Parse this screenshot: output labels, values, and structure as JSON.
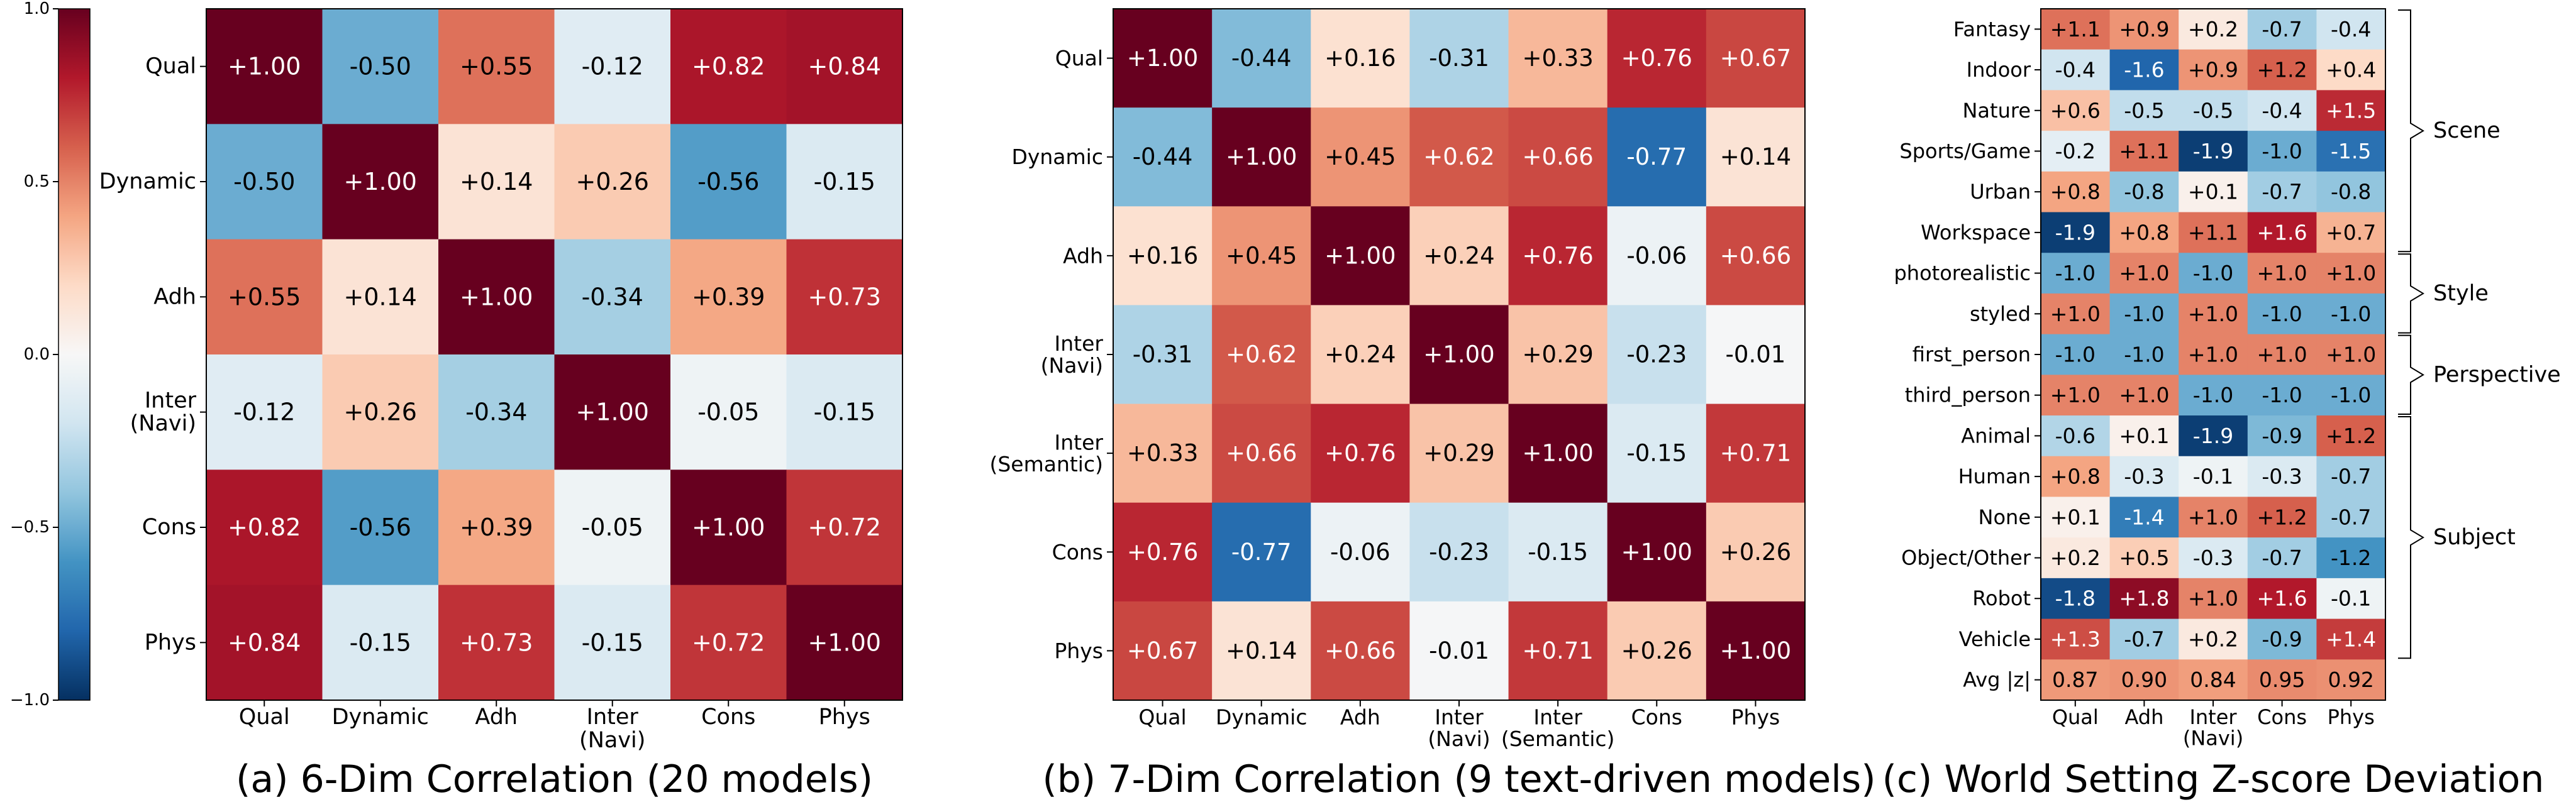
{
  "colormap": {
    "stops": [
      "#053061",
      "#2166ac",
      "#4393c3",
      "#92c5de",
      "#d1e5f0",
      "#f7f7f7",
      "#fddbc7",
      "#f4a582",
      "#d6604d",
      "#b2182b",
      "#67001f"
    ]
  },
  "colorbar": {
    "vmin": -1.0,
    "vmax": 1.0,
    "ticks": [
      "1.0",
      "0.5",
      "0.0",
      "−0.5",
      "−1.0"
    ],
    "tick_values": [
      1.0,
      0.5,
      0.0,
      -0.5,
      -1.0
    ]
  },
  "chart_data": [
    {
      "type": "heatmap",
      "title": "(a) 6-Dim Correlation (20 models)",
      "rows": [
        [
          "Qual"
        ],
        [
          "Dynamic"
        ],
        [
          "Adh"
        ],
        [
          "Inter",
          "(Navi)"
        ],
        [
          "Cons"
        ],
        [
          "Phys"
        ]
      ],
      "columns": [
        [
          "Qual"
        ],
        [
          "Dynamic"
        ],
        [
          "Adh"
        ],
        [
          "Inter",
          "(Navi)"
        ],
        [
          "Cons"
        ],
        [
          "Phys"
        ]
      ],
      "values": [
        [
          1.0,
          -0.5,
          0.55,
          -0.12,
          0.82,
          0.84
        ],
        [
          -0.5,
          1.0,
          0.14,
          0.26,
          -0.56,
          -0.15
        ],
        [
          0.55,
          0.14,
          1.0,
          -0.34,
          0.39,
          0.73
        ],
        [
          -0.12,
          0.26,
          -0.34,
          1.0,
          -0.05,
          -0.15
        ],
        [
          0.82,
          -0.56,
          0.39,
          -0.05,
          1.0,
          0.72
        ],
        [
          0.84,
          -0.15,
          0.73,
          -0.15,
          0.72,
          1.0
        ]
      ],
      "labels": [
        [
          "+1.00",
          "-0.50",
          "+0.55",
          "-0.12",
          "+0.82",
          "+0.84"
        ],
        [
          "-0.50",
          "+1.00",
          "+0.14",
          "+0.26",
          "-0.56",
          "-0.15"
        ],
        [
          "+0.55",
          "+0.14",
          "+1.00",
          "-0.34",
          "+0.39",
          "+0.73"
        ],
        [
          "-0.12",
          "+0.26",
          "-0.34",
          "+1.00",
          "-0.05",
          "-0.15"
        ],
        [
          "+0.82",
          "-0.56",
          "+0.39",
          "-0.05",
          "+1.00",
          "+0.72"
        ],
        [
          "+0.84",
          "-0.15",
          "+0.73",
          "-0.15",
          "+0.72",
          "+1.00"
        ]
      ]
    },
    {
      "type": "heatmap",
      "title": "(b) 7-Dim Correlation (9 text-driven models)",
      "rows": [
        [
          "Qual"
        ],
        [
          "Dynamic"
        ],
        [
          "Adh"
        ],
        [
          "Inter",
          "(Navi)"
        ],
        [
          "Inter",
          "(Semantic)"
        ],
        [
          "Cons"
        ],
        [
          "Phys"
        ]
      ],
      "columns": [
        [
          "Qual"
        ],
        [
          "Dynamic"
        ],
        [
          "Adh"
        ],
        [
          "Inter",
          "(Navi)"
        ],
        [
          "Inter",
          "(Semantic)"
        ],
        [
          "Cons"
        ],
        [
          "Phys"
        ]
      ],
      "values": [
        [
          1.0,
          -0.44,
          0.16,
          -0.31,
          0.33,
          0.76,
          0.67
        ],
        [
          -0.44,
          1.0,
          0.45,
          0.62,
          0.66,
          -0.77,
          0.14
        ],
        [
          0.16,
          0.45,
          1.0,
          0.24,
          0.76,
          -0.06,
          0.66
        ],
        [
          -0.31,
          0.62,
          0.24,
          1.0,
          0.29,
          -0.23,
          -0.01
        ],
        [
          0.33,
          0.66,
          0.76,
          0.29,
          1.0,
          -0.15,
          0.71
        ],
        [
          0.76,
          -0.77,
          -0.06,
          -0.23,
          -0.15,
          1.0,
          0.26
        ],
        [
          0.67,
          0.14,
          0.66,
          -0.01,
          0.71,
          0.26,
          1.0
        ]
      ],
      "labels": [
        [
          "+1.00",
          "-0.44",
          "+0.16",
          "-0.31",
          "+0.33",
          "+0.76",
          "+0.67"
        ],
        [
          "-0.44",
          "+1.00",
          "+0.45",
          "+0.62",
          "+0.66",
          "-0.77",
          "+0.14"
        ],
        [
          "+0.16",
          "+0.45",
          "+1.00",
          "+0.24",
          "+0.76",
          "-0.06",
          "+0.66"
        ],
        [
          "-0.31",
          "+0.62",
          "+0.24",
          "+1.00",
          "+0.29",
          "-0.23",
          "-0.01"
        ],
        [
          "+0.33",
          "+0.66",
          "+0.76",
          "+0.29",
          "+1.00",
          "-0.15",
          "+0.71"
        ],
        [
          "+0.76",
          "-0.77",
          "-0.06",
          "-0.23",
          "-0.15",
          "+1.00",
          "+0.26"
        ],
        [
          "+0.67",
          "+0.14",
          "+0.66",
          "-0.01",
          "+0.71",
          "+0.26",
          "+1.00"
        ]
      ]
    },
    {
      "type": "heatmap",
      "title": "(c) World Setting Z-score Deviation",
      "rows": [
        [
          "Fantasy"
        ],
        [
          "Indoor"
        ],
        [
          "Nature"
        ],
        [
          "Sports/Game"
        ],
        [
          "Urban"
        ],
        [
          "Workspace"
        ],
        [
          "photorealistic"
        ],
        [
          "styled"
        ],
        [
          "first_person"
        ],
        [
          "third_person"
        ],
        [
          "Animal"
        ],
        [
          "Human"
        ],
        [
          "None"
        ],
        [
          "Object/Other"
        ],
        [
          "Robot"
        ],
        [
          "Vehicle"
        ],
        [
          "Avg |z|"
        ]
      ],
      "columns": [
        [
          "Qual"
        ],
        [
          "Adh"
        ],
        [
          "Inter",
          "(Navi)"
        ],
        [
          "Cons"
        ],
        [
          "Phys"
        ]
      ],
      "values": [
        [
          1.1,
          0.9,
          0.2,
          -0.7,
          -0.4
        ],
        [
          -0.4,
          -1.6,
          0.9,
          1.2,
          0.4
        ],
        [
          0.6,
          -0.5,
          -0.5,
          -0.4,
          1.5
        ],
        [
          -0.2,
          1.1,
          -1.9,
          -1.0,
          -1.5
        ],
        [
          0.8,
          -0.8,
          0.1,
          -0.7,
          -0.8
        ],
        [
          -1.9,
          0.8,
          1.1,
          1.6,
          0.7
        ],
        [
          -1.0,
          1.0,
          -1.0,
          1.0,
          1.0
        ],
        [
          1.0,
          -1.0,
          1.0,
          -1.0,
          -1.0
        ],
        [
          -1.0,
          -1.0,
          1.0,
          1.0,
          1.0
        ],
        [
          1.0,
          1.0,
          -1.0,
          -1.0,
          -1.0
        ],
        [
          -0.6,
          0.1,
          -1.9,
          -0.9,
          1.2
        ],
        [
          0.8,
          -0.3,
          -0.1,
          -0.3,
          -0.7
        ],
        [
          0.1,
          -1.4,
          1.0,
          1.2,
          -0.7
        ],
        [
          0.2,
          0.5,
          -0.3,
          -0.7,
          -1.2
        ],
        [
          -1.8,
          1.8,
          1.0,
          1.6,
          -0.1
        ],
        [
          1.3,
          -0.7,
          0.2,
          -0.9,
          1.4
        ],
        [
          0.87,
          0.9,
          0.84,
          0.95,
          0.92
        ]
      ],
      "labels": [
        [
          "+1.1",
          "+0.9",
          "+0.2",
          "-0.7",
          "-0.4"
        ],
        [
          "-0.4",
          "-1.6",
          "+0.9",
          "+1.2",
          "+0.4"
        ],
        [
          "+0.6",
          "-0.5",
          "-0.5",
          "-0.4",
          "+1.5"
        ],
        [
          "-0.2",
          "+1.1",
          "-1.9",
          "-1.0",
          "-1.5"
        ],
        [
          "+0.8",
          "-0.8",
          "+0.1",
          "-0.7",
          "-0.8"
        ],
        [
          "-1.9",
          "+0.8",
          "+1.1",
          "+1.6",
          "+0.7"
        ],
        [
          "-1.0",
          "+1.0",
          "-1.0",
          "+1.0",
          "+1.0"
        ],
        [
          "+1.0",
          "-1.0",
          "+1.0",
          "-1.0",
          "-1.0"
        ],
        [
          "-1.0",
          "-1.0",
          "+1.0",
          "+1.0",
          "+1.0"
        ],
        [
          "+1.0",
          "+1.0",
          "-1.0",
          "-1.0",
          "-1.0"
        ],
        [
          "-0.6",
          "+0.1",
          "-1.9",
          "-0.9",
          "+1.2"
        ],
        [
          "+0.8",
          "-0.3",
          "-0.1",
          "-0.3",
          "-0.7"
        ],
        [
          "+0.1",
          "-1.4",
          "+1.0",
          "+1.2",
          "-0.7"
        ],
        [
          "+0.2",
          "+0.5",
          "-0.3",
          "-0.7",
          "-1.2"
        ],
        [
          "-1.8",
          "+1.8",
          "+1.0",
          "+1.6",
          "-0.1"
        ],
        [
          "+1.3",
          "-0.7",
          "+0.2",
          "-0.9",
          "+1.4"
        ],
        [
          "0.87",
          "0.90",
          "0.84",
          "0.95",
          "0.92"
        ]
      ],
      "color_range": [
        -2.0,
        2.0
      ],
      "groups": [
        {
          "label": "Scene",
          "first_row": 0,
          "last_row": 5
        },
        {
          "label": "Style",
          "first_row": 6,
          "last_row": 7
        },
        {
          "label": "Perspective",
          "first_row": 8,
          "last_row": 9
        },
        {
          "label": "Subject",
          "first_row": 10,
          "last_row": 15
        }
      ]
    }
  ]
}
